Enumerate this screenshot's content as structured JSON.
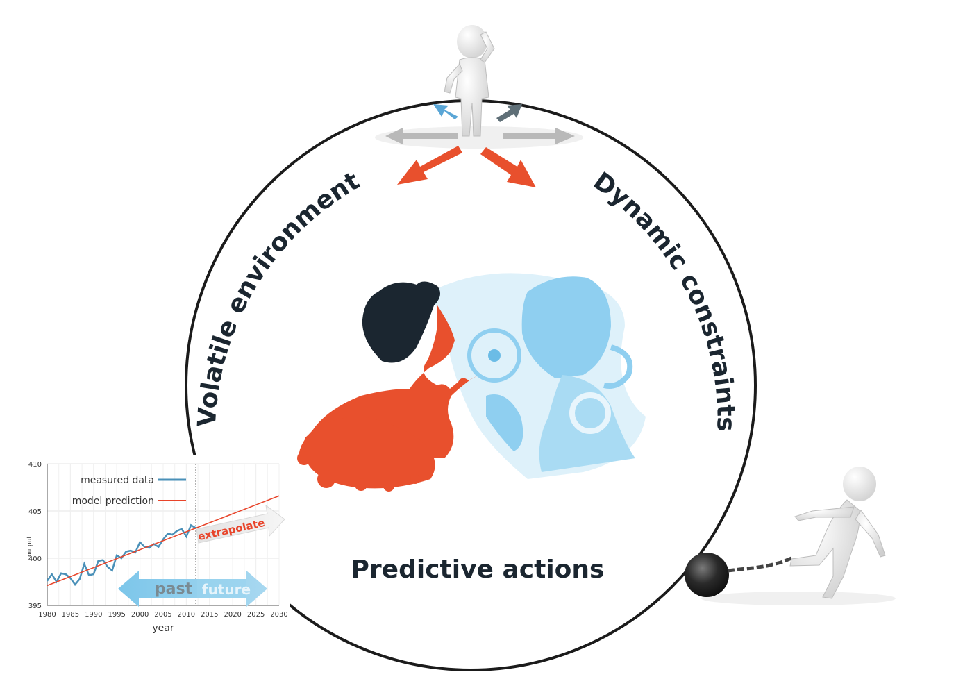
{
  "labels": {
    "left_arc": "Volatile environment",
    "right_arc": "Dynamic constraints",
    "bottom": "Predictive actions"
  },
  "chart_data": {
    "type": "line",
    "title": "",
    "xlabel": "year",
    "ylabel": "output",
    "xlim": [
      1980,
      2030
    ],
    "ylim": [
      395,
      410
    ],
    "xticks": [
      1980,
      1985,
      1990,
      1995,
      2000,
      2005,
      2010,
      2015,
      2020,
      2025,
      2030
    ],
    "yticks": [
      395,
      400,
      405,
      410
    ],
    "grid": true,
    "legend_position": "top-left",
    "series": [
      {
        "name": "measured data",
        "color": "#4a90b8",
        "x": [
          1980,
          1981,
          1982,
          1983,
          1984,
          1985,
          1986,
          1987,
          1988,
          1989,
          1990,
          1991,
          1992,
          1993,
          1994,
          1995,
          1996,
          1997,
          1998,
          1999,
          2000,
          2001,
          2002,
          2003,
          2004,
          2005,
          2006,
          2007,
          2008,
          2009,
          2010,
          2011,
          2012
        ],
        "y": [
          397.6,
          398.3,
          397.5,
          398.4,
          398.3,
          397.9,
          397.2,
          397.8,
          399.4,
          398.2,
          398.3,
          399.7,
          399.8,
          399.1,
          398.7,
          400.3,
          400.0,
          400.7,
          400.8,
          400.6,
          401.7,
          401.2,
          401.1,
          401.5,
          401.2,
          402.0,
          402.6,
          402.5,
          402.9,
          403.1,
          402.3,
          403.5,
          403.2
        ]
      },
      {
        "name": "model prediction",
        "color": "#e8442a",
        "x": [
          1980,
          2030
        ],
        "y": [
          397.1,
          406.6
        ]
      }
    ],
    "annotations": {
      "extrapolate": "extrapolate",
      "past": "past",
      "future": "future",
      "divider_year": 2012
    }
  }
}
